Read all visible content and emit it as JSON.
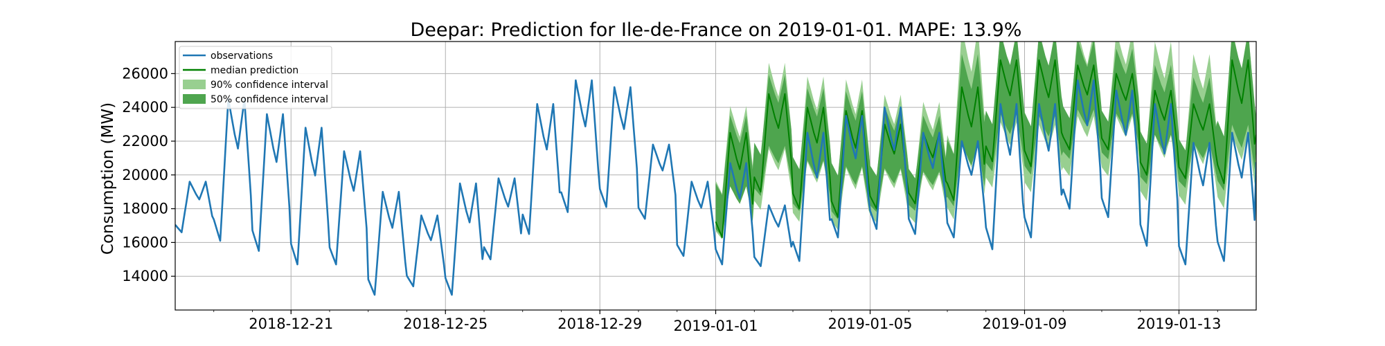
{
  "chart_data": {
    "type": "line",
    "title": "Deepar: Prediction for Ile-de-France on 2019-01-01. MAPE: 13.9%",
    "xlabel": "",
    "ylabel": "Consumption (MW)",
    "xlim": [
      "2018-12-18",
      "2019-01-15"
    ],
    "ylim": [
      12000,
      27900
    ],
    "grid": true,
    "legend_position": "top-left",
    "x_ticks": [
      "2018-12-21",
      "2018-12-25",
      "2018-12-29",
      "2019-01-01",
      "2019-01-05",
      "2019-01-09",
      "2019-01-13"
    ],
    "y_ticks": [
      14000,
      16000,
      18000,
      20000,
      22000,
      24000,
      26000
    ],
    "forecast_start": "2019-01-01",
    "colors": {
      "observations": "#1f77b4",
      "median": "#008000",
      "ci90": "#98cf90",
      "ci50": "#4ea54e",
      "grid": "#b0b0b0"
    },
    "series": [
      {
        "name": "observations",
        "kind": "line",
        "daily": [
          {
            "date": "2018-12-18",
            "min": 16600,
            "max": 19600
          },
          {
            "date": "2018-12-19",
            "min": 16100,
            "max": 24500
          },
          {
            "date": "2018-12-20",
            "min": 15500,
            "max": 23600
          },
          {
            "date": "2018-12-21",
            "min": 14700,
            "max": 22800
          },
          {
            "date": "2018-12-22",
            "min": 14700,
            "max": 21400
          },
          {
            "date": "2018-12-23",
            "min": 12900,
            "max": 19000
          },
          {
            "date": "2018-12-24",
            "min": 13400,
            "max": 17600
          },
          {
            "date": "2018-12-25",
            "min": 12900,
            "max": 19500
          },
          {
            "date": "2018-12-26",
            "min": 15000,
            "max": 19800
          },
          {
            "date": "2018-12-27",
            "min": 16500,
            "max": 24200
          },
          {
            "date": "2018-12-28",
            "min": 17800,
            "max": 25600
          },
          {
            "date": "2018-12-29",
            "min": 18100,
            "max": 25200
          },
          {
            "date": "2018-12-30",
            "min": 17400,
            "max": 21800
          },
          {
            "date": "2018-12-31",
            "min": 15200,
            "max": 19600
          },
          {
            "date": "2019-01-01",
            "min": 14700,
            "max": 20700
          },
          {
            "date": "2019-01-02",
            "min": 14600,
            "max": 18200
          },
          {
            "date": "2019-01-03",
            "min": 14900,
            "max": 22500
          },
          {
            "date": "2019-01-04",
            "min": 16300,
            "max": 23500
          },
          {
            "date": "2019-01-05",
            "min": 16800,
            "max": 24000
          },
          {
            "date": "2019-01-06",
            "min": 16500,
            "max": 22500
          },
          {
            "date": "2019-01-07",
            "min": 16300,
            "max": 22000
          },
          {
            "date": "2019-01-08",
            "min": 15600,
            "max": 24200
          },
          {
            "date": "2019-01-09",
            "min": 16300,
            "max": 24200
          },
          {
            "date": "2019-01-10",
            "min": 18000,
            "max": 25600
          },
          {
            "date": "2019-01-11",
            "min": 17500,
            "max": 25000
          },
          {
            "date": "2019-01-12",
            "min": 15800,
            "max": 24200
          },
          {
            "date": "2019-01-13",
            "min": 14700,
            "max": 21900
          },
          {
            "date": "2019-01-14",
            "min": 14900,
            "max": 22500
          },
          {
            "date": "2019-01-15",
            "min": 20200,
            "max": 23900
          }
        ]
      },
      {
        "name": "median prediction",
        "kind": "line",
        "daily": [
          {
            "date": "2019-01-01",
            "min": 16300,
            "max": 22500
          },
          {
            "date": "2019-01-02",
            "min": 19000,
            "max": 24800
          },
          {
            "date": "2019-01-03",
            "min": 18000,
            "max": 24000
          },
          {
            "date": "2019-01-04",
            "min": 17500,
            "max": 23800
          },
          {
            "date": "2019-01-05",
            "min": 18000,
            "max": 23000
          },
          {
            "date": "2019-01-06",
            "min": 18300,
            "max": 22500
          },
          {
            "date": "2019-01-07",
            "min": 18500,
            "max": 25200
          },
          {
            "date": "2019-01-08",
            "min": 20800,
            "max": 26800
          },
          {
            "date": "2019-01-09",
            "min": 20500,
            "max": 26800
          },
          {
            "date": "2019-01-10",
            "min": 21500,
            "max": 26500
          },
          {
            "date": "2019-01-11",
            "min": 21500,
            "max": 26000
          },
          {
            "date": "2019-01-12",
            "min": 20000,
            "max": 25000
          },
          {
            "date": "2019-01-13",
            "min": 19800,
            "max": 24200
          },
          {
            "date": "2019-01-14",
            "min": 19500,
            "max": 26800
          },
          {
            "date": "2019-01-15",
            "min": 22000,
            "max": 24500
          }
        ]
      },
      {
        "name": "90% confidence interval",
        "kind": "band",
        "daily": [
          {
            "date": "2019-01-01",
            "low": 15800,
            "high": 23500
          },
          {
            "date": "2019-01-02",
            "low": 17500,
            "high": 26000
          },
          {
            "date": "2019-01-03",
            "low": 16800,
            "high": 25200
          },
          {
            "date": "2019-01-04",
            "low": 16300,
            "high": 25000
          },
          {
            "date": "2019-01-05",
            "low": 16800,
            "high": 24200
          },
          {
            "date": "2019-01-06",
            "low": 16800,
            "high": 23800
          },
          {
            "date": "2019-01-07",
            "low": 16800,
            "high": 27900
          },
          {
            "date": "2019-01-08",
            "low": 18800,
            "high": 27900
          },
          {
            "date": "2019-01-09",
            "low": 18500,
            "high": 27900
          },
          {
            "date": "2019-01-10",
            "low": 19500,
            "high": 27900
          },
          {
            "date": "2019-01-11",
            "low": 19500,
            "high": 27900
          },
          {
            "date": "2019-01-12",
            "low": 18000,
            "high": 27200
          },
          {
            "date": "2019-01-13",
            "low": 17800,
            "high": 26500
          },
          {
            "date": "2019-01-14",
            "low": 17500,
            "high": 27900
          },
          {
            "date": "2019-01-15",
            "low": 20000,
            "high": 27000
          }
        ]
      },
      {
        "name": "50% confidence interval",
        "kind": "band",
        "daily": [
          {
            "date": "2019-01-01",
            "low": 16000,
            "high": 23000
          },
          {
            "date": "2019-01-02",
            "low": 18400,
            "high": 25400
          },
          {
            "date": "2019-01-03",
            "low": 17500,
            "high": 24600
          },
          {
            "date": "2019-01-04",
            "low": 17000,
            "high": 24400
          },
          {
            "date": "2019-01-05",
            "low": 17500,
            "high": 23600
          },
          {
            "date": "2019-01-06",
            "low": 17600,
            "high": 23100
          },
          {
            "date": "2019-01-07",
            "low": 17700,
            "high": 26500
          },
          {
            "date": "2019-01-08",
            "low": 19800,
            "high": 27800
          },
          {
            "date": "2019-01-09",
            "low": 19600,
            "high": 27800
          },
          {
            "date": "2019-01-10",
            "low": 20600,
            "high": 27500
          },
          {
            "date": "2019-01-11",
            "low": 20600,
            "high": 27000
          },
          {
            "date": "2019-01-12",
            "low": 19100,
            "high": 26000
          },
          {
            "date": "2019-01-13",
            "low": 18900,
            "high": 25300
          },
          {
            "date": "2019-01-14",
            "low": 18600,
            "high": 27800
          },
          {
            "date": "2019-01-15",
            "low": 21000,
            "high": 25800
          }
        ]
      }
    ]
  }
}
